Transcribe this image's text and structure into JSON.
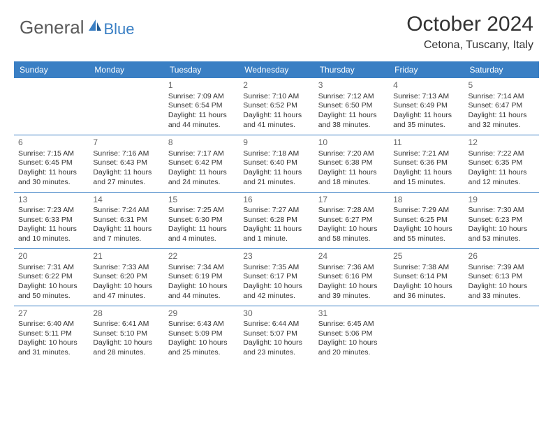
{
  "logo": {
    "part1": "General",
    "part2": "Blue"
  },
  "title": "October 2024",
  "location": "Cetona, Tuscany, Italy",
  "colors": {
    "header_bg": "#3a7fc4",
    "header_text": "#ffffff",
    "body_text": "#333333",
    "daynum": "#666666",
    "logo_gray": "#5a5a5a",
    "logo_blue": "#3a7fc4",
    "separator": "#3a7fc4",
    "background": "#ffffff"
  },
  "dayNames": [
    "Sunday",
    "Monday",
    "Tuesday",
    "Wednesday",
    "Thursday",
    "Friday",
    "Saturday"
  ],
  "weeks": [
    [
      null,
      null,
      {
        "n": "1",
        "sr": "7:09 AM",
        "ss": "6:54 PM",
        "dl": "11 hours and 44 minutes."
      },
      {
        "n": "2",
        "sr": "7:10 AM",
        "ss": "6:52 PM",
        "dl": "11 hours and 41 minutes."
      },
      {
        "n": "3",
        "sr": "7:12 AM",
        "ss": "6:50 PM",
        "dl": "11 hours and 38 minutes."
      },
      {
        "n": "4",
        "sr": "7:13 AM",
        "ss": "6:49 PM",
        "dl": "11 hours and 35 minutes."
      },
      {
        "n": "5",
        "sr": "7:14 AM",
        "ss": "6:47 PM",
        "dl": "11 hours and 32 minutes."
      }
    ],
    [
      {
        "n": "6",
        "sr": "7:15 AM",
        "ss": "6:45 PM",
        "dl": "11 hours and 30 minutes."
      },
      {
        "n": "7",
        "sr": "7:16 AM",
        "ss": "6:43 PM",
        "dl": "11 hours and 27 minutes."
      },
      {
        "n": "8",
        "sr": "7:17 AM",
        "ss": "6:42 PM",
        "dl": "11 hours and 24 minutes."
      },
      {
        "n": "9",
        "sr": "7:18 AM",
        "ss": "6:40 PM",
        "dl": "11 hours and 21 minutes."
      },
      {
        "n": "10",
        "sr": "7:20 AM",
        "ss": "6:38 PM",
        "dl": "11 hours and 18 minutes."
      },
      {
        "n": "11",
        "sr": "7:21 AM",
        "ss": "6:36 PM",
        "dl": "11 hours and 15 minutes."
      },
      {
        "n": "12",
        "sr": "7:22 AM",
        "ss": "6:35 PM",
        "dl": "11 hours and 12 minutes."
      }
    ],
    [
      {
        "n": "13",
        "sr": "7:23 AM",
        "ss": "6:33 PM",
        "dl": "11 hours and 10 minutes."
      },
      {
        "n": "14",
        "sr": "7:24 AM",
        "ss": "6:31 PM",
        "dl": "11 hours and 7 minutes."
      },
      {
        "n": "15",
        "sr": "7:25 AM",
        "ss": "6:30 PM",
        "dl": "11 hours and 4 minutes."
      },
      {
        "n": "16",
        "sr": "7:27 AM",
        "ss": "6:28 PM",
        "dl": "11 hours and 1 minute."
      },
      {
        "n": "17",
        "sr": "7:28 AM",
        "ss": "6:27 PM",
        "dl": "10 hours and 58 minutes."
      },
      {
        "n": "18",
        "sr": "7:29 AM",
        "ss": "6:25 PM",
        "dl": "10 hours and 55 minutes."
      },
      {
        "n": "19",
        "sr": "7:30 AM",
        "ss": "6:23 PM",
        "dl": "10 hours and 53 minutes."
      }
    ],
    [
      {
        "n": "20",
        "sr": "7:31 AM",
        "ss": "6:22 PM",
        "dl": "10 hours and 50 minutes."
      },
      {
        "n": "21",
        "sr": "7:33 AM",
        "ss": "6:20 PM",
        "dl": "10 hours and 47 minutes."
      },
      {
        "n": "22",
        "sr": "7:34 AM",
        "ss": "6:19 PM",
        "dl": "10 hours and 44 minutes."
      },
      {
        "n": "23",
        "sr": "7:35 AM",
        "ss": "6:17 PM",
        "dl": "10 hours and 42 minutes."
      },
      {
        "n": "24",
        "sr": "7:36 AM",
        "ss": "6:16 PM",
        "dl": "10 hours and 39 minutes."
      },
      {
        "n": "25",
        "sr": "7:38 AM",
        "ss": "6:14 PM",
        "dl": "10 hours and 36 minutes."
      },
      {
        "n": "26",
        "sr": "7:39 AM",
        "ss": "6:13 PM",
        "dl": "10 hours and 33 minutes."
      }
    ],
    [
      {
        "n": "27",
        "sr": "6:40 AM",
        "ss": "5:11 PM",
        "dl": "10 hours and 31 minutes."
      },
      {
        "n": "28",
        "sr": "6:41 AM",
        "ss": "5:10 PM",
        "dl": "10 hours and 28 minutes."
      },
      {
        "n": "29",
        "sr": "6:43 AM",
        "ss": "5:09 PM",
        "dl": "10 hours and 25 minutes."
      },
      {
        "n": "30",
        "sr": "6:44 AM",
        "ss": "5:07 PM",
        "dl": "10 hours and 23 minutes."
      },
      {
        "n": "31",
        "sr": "6:45 AM",
        "ss": "5:06 PM",
        "dl": "10 hours and 20 minutes."
      },
      null,
      null
    ]
  ],
  "labels": {
    "sunrise": "Sunrise:",
    "sunset": "Sunset:",
    "daylight": "Daylight:"
  }
}
